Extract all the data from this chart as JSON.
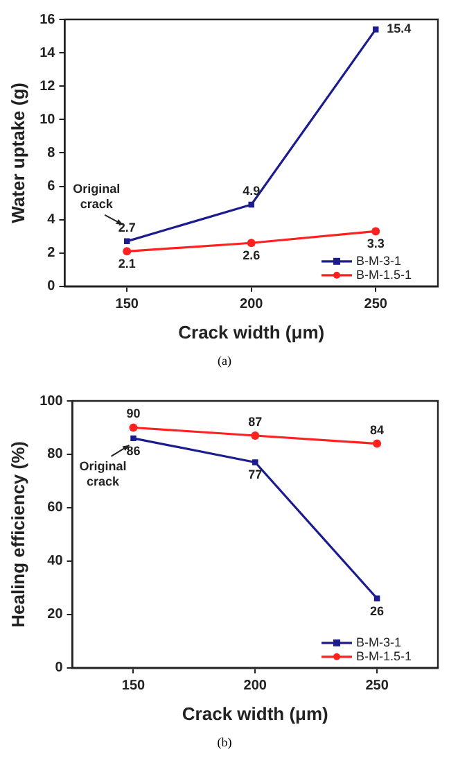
{
  "chart_data": [
    {
      "type": "line",
      "xlabel": "Crack width (μm)",
      "ylabel": "Water uptake (g)",
      "x": [
        150,
        200,
        250
      ],
      "xlim": [
        125,
        275
      ],
      "xticks": [
        150,
        200,
        250
      ],
      "ylim": [
        0,
        16
      ],
      "yticks": [
        0,
        2,
        4,
        6,
        8,
        10,
        12,
        14,
        16
      ],
      "grid": false,
      "legend": "bottom right",
      "data_labels": true,
      "line_style": "solid",
      "series": [
        {
          "name": "B-M-3-1",
          "color": "#1c1c8f",
          "marker": "square",
          "values": [
            2.7,
            4.9,
            15.4
          ]
        },
        {
          "name": "B-M-1.5-1",
          "color": "#ff2020",
          "marker": "circle",
          "values": [
            2.1,
            2.6,
            3.3
          ]
        }
      ],
      "annotations": [
        {
          "text": "Original crack",
          "x": 150,
          "y": 2.7
        },
        "(a)"
      ]
    },
    {
      "type": "line",
      "xlabel": "Crack width (μm)",
      "ylabel": "Healing efficiency (%)",
      "x": [
        150,
        200,
        250
      ],
      "xlim": [
        125,
        275
      ],
      "xticks": [
        150,
        200,
        250
      ],
      "ylim": [
        0,
        100
      ],
      "yticks": [
        0,
        20,
        40,
        60,
        80,
        100
      ],
      "grid": false,
      "legend": "bottom right",
      "data_labels": true,
      "line_style": "solid",
      "series": [
        {
          "name": "B-M-3-1",
          "color": "#1c1c8f",
          "marker": "square",
          "values": [
            86,
            77,
            26
          ]
        },
        {
          "name": "B-M-1.5-1",
          "color": "#ff2020",
          "marker": "circle",
          "values": [
            90,
            87,
            84
          ]
        }
      ],
      "annotations": [
        {
          "text": "Original crack",
          "x": 150,
          "y": 86
        },
        "(b)"
      ]
    }
  ]
}
